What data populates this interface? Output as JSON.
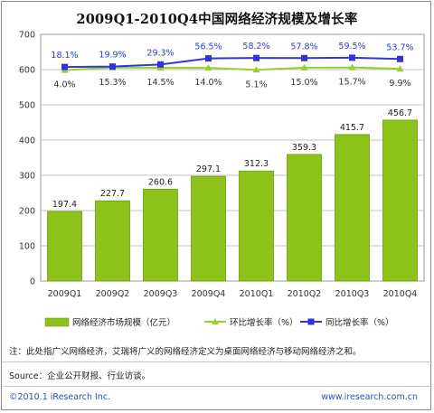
{
  "chart_data": {
    "type": "bar",
    "title": "2009Q1-2010Q4中国网络经济规模及增长率",
    "categories": [
      "2009Q1",
      "2009Q2",
      "2009Q3",
      "2009Q4",
      "2010Q1",
      "2010Q2",
      "2010Q3",
      "2010Q4"
    ],
    "ylim": [
      0,
      700
    ],
    "yticks": [
      0,
      100,
      200,
      300,
      400,
      500,
      600,
      700
    ],
    "grid": true,
    "series": [
      {
        "name": "网络经济市场规模（亿元）",
        "kind": "bar",
        "color": "#8cc21a",
        "values": [
          197.4,
          227.7,
          260.6,
          297.1,
          312.3,
          359.3,
          415.7,
          456.7
        ],
        "labels": [
          "197.4",
          "227.7",
          "260.6",
          "297.1",
          "312.3",
          "359.3",
          "415.7",
          "456.7"
        ]
      },
      {
        "name": "环比增长率（%）",
        "kind": "line",
        "color": "#9acd32",
        "values": [
          4.0,
          15.3,
          14.5,
          14.0,
          5.1,
          15.0,
          15.7,
          9.9
        ],
        "labels": [
          "4.0%",
          "15.3%",
          "14.5%",
          "14.0%",
          "5.1%",
          "15.0%",
          "15.7%",
          "9.9%"
        ]
      },
      {
        "name": "同比增长率（%）",
        "kind": "line",
        "color": "#3333dd",
        "values": [
          18.1,
          19.9,
          29.3,
          56.5,
          58.2,
          57.8,
          59.5,
          53.7
        ],
        "labels": [
          "18.1%",
          "19.9%",
          "29.3%",
          "56.5%",
          "58.2%",
          "57.8%",
          "59.5%",
          "53.7%"
        ]
      }
    ],
    "legend_position": "bottom"
  },
  "notes": {
    "note": "注：此处指广义网络经济，艾瑞将广义的网络经济定义为桌面网络经济与移动网络经济之和。",
    "source": "Source：企业公开财报、行业访谈。",
    "copyright": "©2010.1 iResearch Inc.",
    "website": "www.iresearch.com.cn"
  }
}
